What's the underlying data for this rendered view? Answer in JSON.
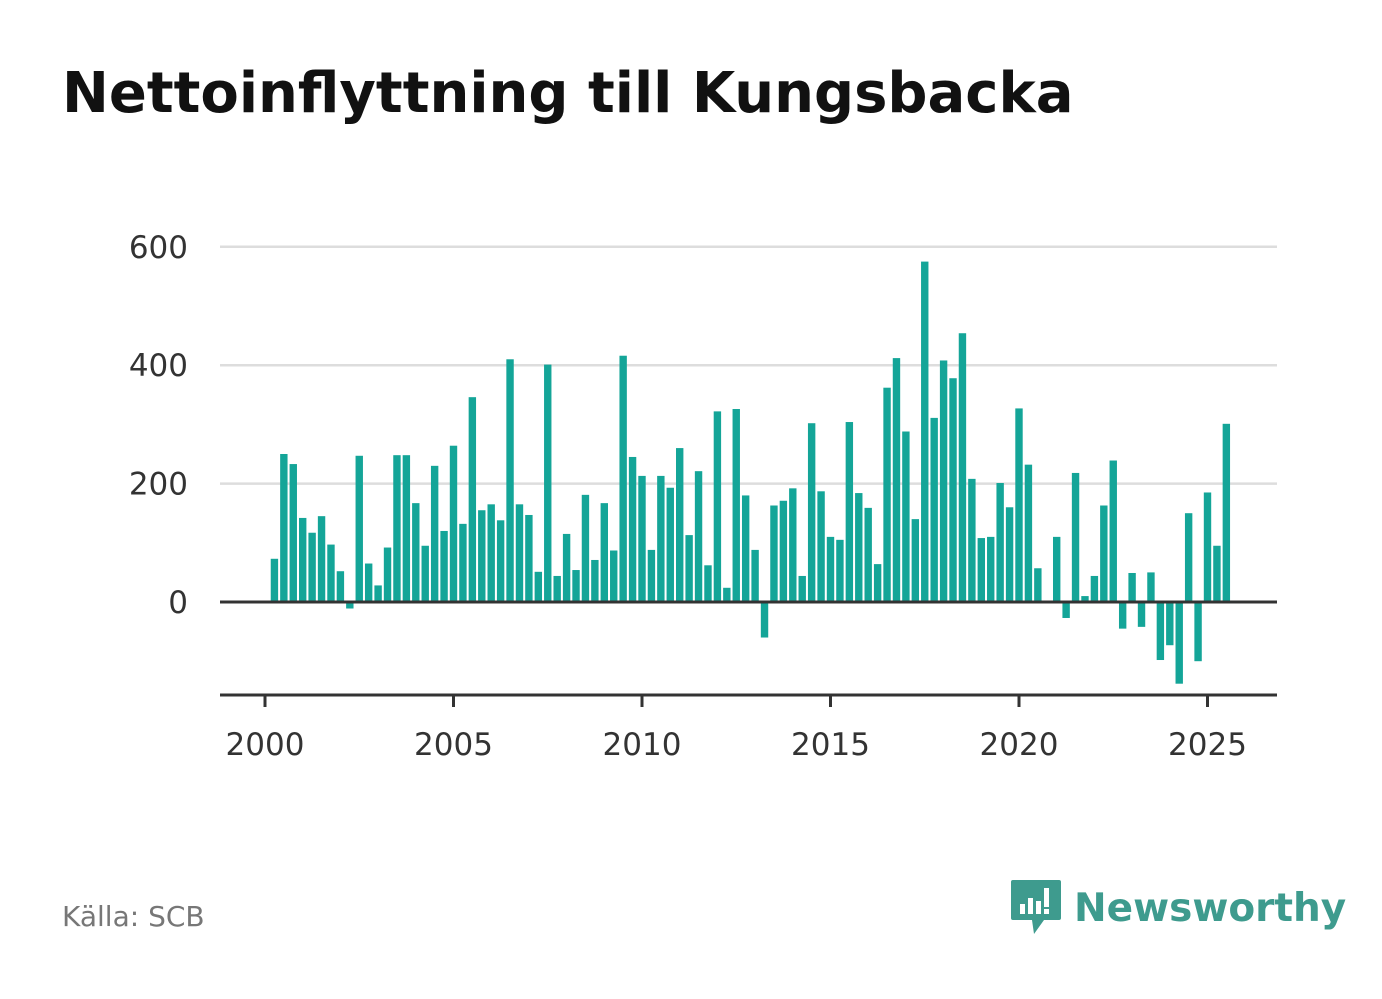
{
  "page": {
    "title": "Nettoinflyttning till Kungsbacka",
    "source": "Källa: SCB",
    "brand": "Newsworthy",
    "brand_icon": "newsworthy-logo-icon",
    "colors": {
      "bar": "#14a598",
      "axis": "#333333",
      "grid": "#dddddd",
      "brand": "#3e9b8e"
    }
  },
  "chart_data": {
    "type": "bar",
    "title": "Nettoinflyttning till Kungsbacka",
    "xlabel": "",
    "ylabel": "",
    "x_unit": "quarter",
    "x_ticks": [
      2000,
      2005,
      2010,
      2015,
      2020,
      2025
    ],
    "y_ticks": [
      0,
      200,
      400,
      600
    ],
    "ylim": [
      -160,
      600
    ],
    "xlim": [
      1999.9,
      2026.8
    ],
    "grid": true,
    "legend": "none",
    "series": [
      {
        "x": [
          2000.25,
          2000.5,
          2000.75,
          2001.0,
          2001.25,
          2001.5,
          2001.75,
          2002.0,
          2002.25,
          2002.5,
          2002.75,
          2003.0,
          2003.25,
          2003.5,
          2003.75,
          2004.0,
          2004.25,
          2004.5,
          2004.75,
          2005.0,
          2005.25,
          2005.5,
          2005.75,
          2006.0,
          2006.25,
          2006.5,
          2006.75,
          2007.0,
          2007.25,
          2007.5,
          2007.75,
          2008.0,
          2008.25,
          2008.5,
          2008.75,
          2009.0,
          2009.25,
          2009.5,
          2009.75,
          2010.0,
          2010.25,
          2010.5,
          2010.75,
          2011.0,
          2011.25,
          2011.5,
          2011.75,
          2012.0,
          2012.25,
          2012.5,
          2012.75,
          2013.0,
          2013.25,
          2013.5,
          2013.75,
          2014.0,
          2014.25,
          2014.5,
          2014.75,
          2015.0,
          2015.25,
          2015.5,
          2015.75,
          2016.0,
          2016.25,
          2016.5,
          2016.75,
          2017.0,
          2017.25,
          2017.5,
          2017.75,
          2018.0,
          2018.25,
          2018.5,
          2018.75,
          2019.0,
          2019.25,
          2019.5,
          2019.75,
          2020.0,
          2020.25,
          2020.5,
          2020.75,
          2021.0,
          2021.25,
          2021.5,
          2021.75,
          2022.0,
          2022.25,
          2022.5,
          2022.75,
          2023.0,
          2023.25,
          2023.5,
          2023.75,
          2024.0,
          2024.25,
          2024.5,
          2024.75,
          2025.0,
          2025.25,
          2025.5
        ],
        "values": [
          73,
          250,
          233,
          142,
          117,
          145,
          97,
          52,
          -11,
          247,
          65,
          28,
          92,
          248,
          248,
          167,
          95,
          230,
          120,
          264,
          132,
          346,
          155,
          165,
          138,
          410,
          165,
          147,
          51,
          401,
          44,
          115,
          54,
          181,
          71,
          167,
          87,
          416,
          245,
          213,
          88,
          213,
          193,
          260,
          113,
          221,
          62,
          322,
          24,
          326,
          180,
          88,
          -60,
          163,
          171,
          192,
          44,
          302,
          187,
          110,
          105,
          304,
          184,
          159,
          64,
          362,
          412,
          288,
          140,
          575,
          311,
          408,
          378,
          454,
          208,
          108,
          110,
          201,
          160,
          327,
          232,
          57,
          0,
          110,
          -27,
          218,
          10,
          44,
          163,
          239,
          -45,
          49,
          -42,
          50,
          -98,
          -73,
          -138,
          150,
          -100,
          185,
          95,
          301
        ]
      }
    ]
  }
}
